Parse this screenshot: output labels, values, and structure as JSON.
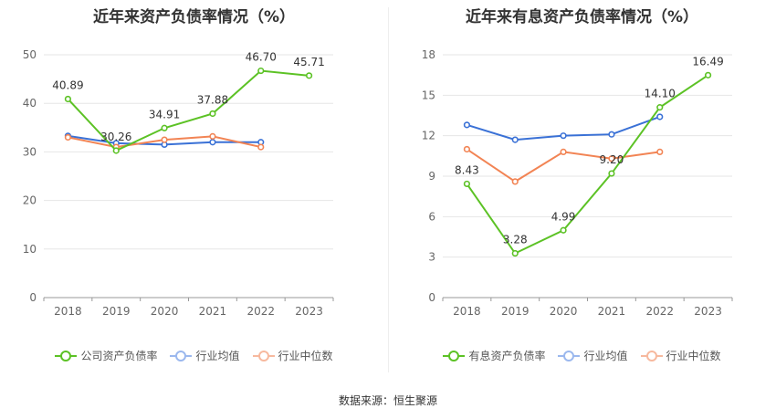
{
  "chart_data": [
    {
      "type": "line",
      "title": "近年来资产负债率情况（%）",
      "categories": [
        "2018",
        "2019",
        "2020",
        "2021",
        "2022",
        "2023"
      ],
      "ylim": [
        0,
        50
      ],
      "yticks": [
        0,
        10,
        20,
        30,
        40,
        50
      ],
      "grid": true,
      "legend_position": "bottom",
      "series": [
        {
          "name": "公司资产负债率",
          "color": "#5cc225",
          "values": [
            40.89,
            30.26,
            34.91,
            37.88,
            46.7,
            45.71
          ],
          "labels": [
            "40.89",
            "30.26",
            "34.91",
            "37.88",
            "46.70",
            "45.71"
          ]
        },
        {
          "name": "行业均值",
          "color": "#3a71d6",
          "values": [
            33.3,
            31.8,
            31.5,
            32.0,
            32.0,
            null
          ]
        },
        {
          "name": "行业中位数",
          "color": "#f28454",
          "values": [
            33.0,
            31.0,
            32.5,
            33.2,
            31.0,
            null
          ]
        }
      ]
    },
    {
      "type": "line",
      "title": "近年来有息资产负债率情况（%）",
      "categories": [
        "2018",
        "2019",
        "2020",
        "2021",
        "2022",
        "2023"
      ],
      "ylim": [
        0,
        18
      ],
      "yticks": [
        0,
        3,
        6,
        9,
        12,
        15,
        18
      ],
      "grid": true,
      "legend_position": "bottom",
      "series": [
        {
          "name": "有息资产负债率",
          "color": "#5cc225",
          "values": [
            8.43,
            3.28,
            4.99,
            9.2,
            14.1,
            16.49
          ],
          "labels": [
            "8.43",
            "3.28",
            "4.99",
            "9.20",
            "14.10",
            "16.49"
          ]
        },
        {
          "name": "行业均值",
          "color": "#3a71d6",
          "values": [
            12.8,
            11.7,
            12.0,
            12.1,
            13.4,
            null
          ]
        },
        {
          "name": "行业中位数",
          "color": "#f28454",
          "values": [
            11.0,
            8.6,
            10.8,
            10.3,
            10.8,
            null
          ]
        }
      ]
    }
  ],
  "footer": {
    "source": "数据来源：恒生聚源"
  }
}
